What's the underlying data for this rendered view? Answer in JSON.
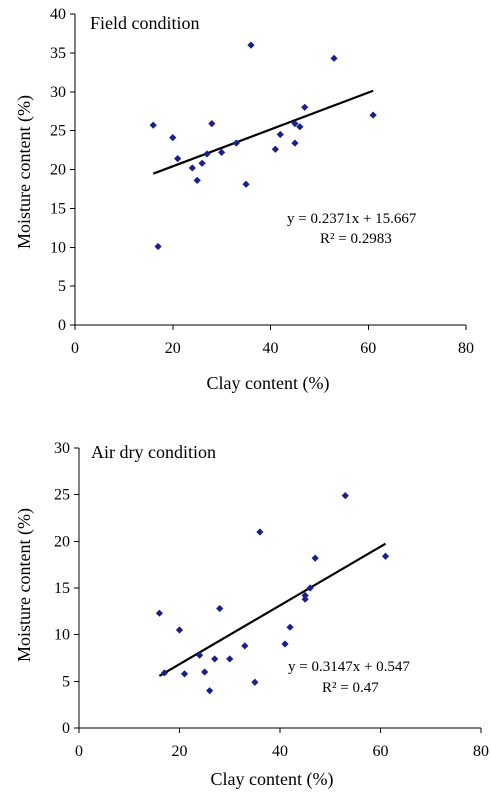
{
  "chart_data": [
    {
      "type": "scatter",
      "title": "Field condition",
      "xlabel": "Clay content (%)",
      "ylabel": "Moisture content (%)",
      "xlim": [
        0,
        80
      ],
      "ylim": [
        0,
        40
      ],
      "xticks": [
        "0",
        "20",
        "40",
        "60",
        "80"
      ],
      "yticks": [
        "0",
        "5",
        "10",
        "15",
        "20",
        "25",
        "30",
        "35",
        "40"
      ],
      "grid": false,
      "points": [
        {
          "x": 16,
          "y": 25.7
        },
        {
          "x": 17,
          "y": 10.1
        },
        {
          "x": 20,
          "y": 24.1
        },
        {
          "x": 21,
          "y": 21.4
        },
        {
          "x": 24,
          "y": 20.2
        },
        {
          "x": 25,
          "y": 18.6
        },
        {
          "x": 26,
          "y": 20.8
        },
        {
          "x": 27,
          "y": 22.0
        },
        {
          "x": 28,
          "y": 25.9
        },
        {
          "x": 30,
          "y": 22.2
        },
        {
          "x": 33,
          "y": 23.4
        },
        {
          "x": 35,
          "y": 18.1
        },
        {
          "x": 36,
          "y": 36.0
        },
        {
          "x": 41,
          "y": 22.6
        },
        {
          "x": 42,
          "y": 24.5
        },
        {
          "x": 45,
          "y": 23.4
        },
        {
          "x": 45,
          "y": 25.9
        },
        {
          "x": 46,
          "y": 25.5
        },
        {
          "x": 47,
          "y": 28.0
        },
        {
          "x": 53,
          "y": 34.3
        },
        {
          "x": 61,
          "y": 27.0
        }
      ],
      "trendline": {
        "slope": 0.2371,
        "intercept": 15.667,
        "x_range": [
          16,
          61
        ]
      },
      "equation": "y = 0.2371x + 15.667",
      "r2_label": "R² = 0.2983"
    },
    {
      "type": "scatter",
      "title": "Air dry condition",
      "xlabel": "Clay content (%)",
      "ylabel": "Moisture content (%)",
      "xlim": [
        0,
        80
      ],
      "ylim": [
        0,
        30
      ],
      "xticks": [
        "0",
        "20",
        "40",
        "60",
        "80"
      ],
      "yticks": [
        "0",
        "5",
        "10",
        "15",
        "20",
        "25",
        "30"
      ],
      "grid": false,
      "points": [
        {
          "x": 16,
          "y": 12.3
        },
        {
          "x": 17,
          "y": 5.9
        },
        {
          "x": 20,
          "y": 10.5
        },
        {
          "x": 21,
          "y": 5.8
        },
        {
          "x": 24,
          "y": 7.8
        },
        {
          "x": 25,
          "y": 6.0
        },
        {
          "x": 26,
          "y": 4.0
        },
        {
          "x": 27,
          "y": 7.4
        },
        {
          "x": 28,
          "y": 12.8
        },
        {
          "x": 30,
          "y": 7.4
        },
        {
          "x": 33,
          "y": 8.8
        },
        {
          "x": 35,
          "y": 4.9
        },
        {
          "x": 36,
          "y": 21.0
        },
        {
          "x": 41,
          "y": 9.0
        },
        {
          "x": 42,
          "y": 10.8
        },
        {
          "x": 45,
          "y": 13.8
        },
        {
          "x": 45,
          "y": 14.2
        },
        {
          "x": 46,
          "y": 15.0
        },
        {
          "x": 47,
          "y": 18.2
        },
        {
          "x": 53,
          "y": 24.9
        },
        {
          "x": 61,
          "y": 18.4
        }
      ],
      "trendline": {
        "slope": 0.3147,
        "intercept": 0.547,
        "x_range": [
          16,
          61
        ]
      },
      "equation": "y = 0.3147x + 0.547",
      "r2_label": "R² = 0.47"
    }
  ]
}
